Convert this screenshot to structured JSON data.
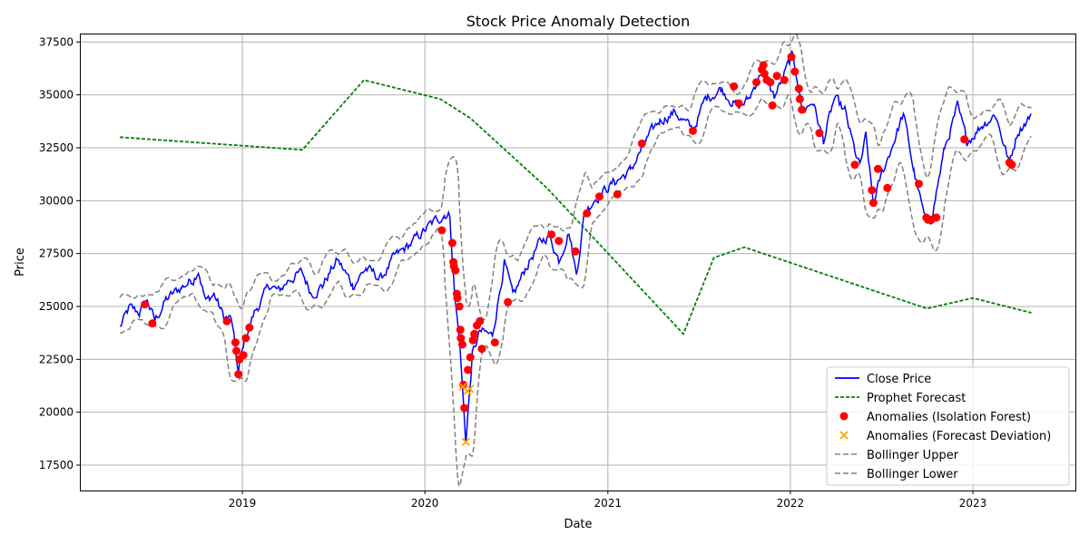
{
  "chart_data": {
    "type": "line",
    "title": "Stock Price Anomaly Detection",
    "xlabel": "Date",
    "ylabel": "Price",
    "xlim": [
      "2018-02-10",
      "2023-07-25"
    ],
    "ylim": [
      16300,
      37900
    ],
    "x_ticks": [
      "2019",
      "2020",
      "2021",
      "2022",
      "2023"
    ],
    "y_ticks": [
      17500,
      20000,
      22500,
      25000,
      27500,
      30000,
      32500,
      35000,
      37500
    ],
    "grid": true,
    "legend_position": "lower-right",
    "colors": {
      "close": "#0000ff",
      "forecast": "#008000",
      "iso": "#ff0000",
      "deviation": "#ffa500",
      "bollinger": "#808080"
    },
    "close_anchors": [
      [
        "2018-05-01",
        24000
      ],
      [
        "2018-05-20",
        24900
      ],
      [
        "2018-06-10",
        24700
      ],
      [
        "2018-06-25",
        25300
      ],
      [
        "2018-07-10",
        24300
      ],
      [
        "2018-08-01",
        25300
      ],
      [
        "2018-09-01",
        25900
      ],
      [
        "2018-09-25",
        26300
      ],
      [
        "2018-10-05",
        26800
      ],
      [
        "2018-10-20",
        25200
      ],
      [
        "2018-11-05",
        25600
      ],
      [
        "2018-11-25",
        24500
      ],
      [
        "2018-12-10",
        24400
      ],
      [
        "2018-12-24",
        21800
      ],
      [
        "2019-01-05",
        23400
      ],
      [
        "2019-01-25",
        24700
      ],
      [
        "2019-02-25",
        26000
      ],
      [
        "2019-03-15",
        25700
      ],
      [
        "2019-04-05",
        26300
      ],
      [
        "2019-04-30",
        26600
      ],
      [
        "2019-05-20",
        25600
      ],
      [
        "2019-06-10",
        26000
      ],
      [
        "2019-07-10",
        27200
      ],
      [
        "2019-08-10",
        26000
      ],
      [
        "2019-09-05",
        26800
      ],
      [
        "2019-10-05",
        26300
      ],
      [
        "2019-11-01",
        27300
      ],
      [
        "2019-12-01",
        27900
      ],
      [
        "2020-01-10",
        28800
      ],
      [
        "2020-02-10",
        29400
      ],
      [
        "2020-02-20",
        29300
      ],
      [
        "2020-03-01",
        25400
      ],
      [
        "2020-03-10",
        23500
      ],
      [
        "2020-03-23",
        18600
      ],
      [
        "2020-04-05",
        22700
      ],
      [
        "2020-04-20",
        23800
      ],
      [
        "2020-05-15",
        23600
      ],
      [
        "2020-06-08",
        27100
      ],
      [
        "2020-06-25",
        25400
      ],
      [
        "2020-07-20",
        26800
      ],
      [
        "2020-08-15",
        27900
      ],
      [
        "2020-09-05",
        28400
      ],
      [
        "2020-09-25",
        27200
      ],
      [
        "2020-10-15",
        28600
      ],
      [
        "2020-10-30",
        26500
      ],
      [
        "2020-11-15",
        29400
      ],
      [
        "2020-12-05",
        30100
      ],
      [
        "2021-01-15",
        30900
      ],
      [
        "2021-02-15",
        31400
      ],
      [
        "2021-03-15",
        32700
      ],
      [
        "2021-04-15",
        33800
      ],
      [
        "2021-05-15",
        34200
      ],
      [
        "2021-06-20",
        33300
      ],
      [
        "2021-07-15",
        34800
      ],
      [
        "2021-08-15",
        35300
      ],
      [
        "2021-09-20",
        34400
      ],
      [
        "2021-10-10",
        34800
      ],
      [
        "2021-11-05",
        36200
      ],
      [
        "2021-11-30",
        34900
      ],
      [
        "2021-12-15",
        35700
      ],
      [
        "2022-01-04",
        36800
      ],
      [
        "2022-01-15",
        35800
      ],
      [
        "2022-01-25",
        34200
      ],
      [
        "2022-02-15",
        34700
      ],
      [
        "2022-03-08",
        32800
      ],
      [
        "2022-03-30",
        34800
      ],
      [
        "2022-04-20",
        34200
      ],
      [
        "2022-05-10",
        32300
      ],
      [
        "2022-05-20",
        31600
      ],
      [
        "2022-06-01",
        33000
      ],
      [
        "2022-06-16",
        29800
      ],
      [
        "2022-07-01",
        31100
      ],
      [
        "2022-08-15",
        34100
      ],
      [
        "2022-09-05",
        31400
      ],
      [
        "2022-09-30",
        28800
      ],
      [
        "2022-10-10",
        29200
      ],
      [
        "2022-11-05",
        32400
      ],
      [
        "2022-12-01",
        34400
      ],
      [
        "2022-12-20",
        32800
      ],
      [
        "2023-01-20",
        33600
      ],
      [
        "2023-02-15",
        34100
      ],
      [
        "2023-03-15",
        31800
      ],
      [
        "2023-04-01",
        33300
      ],
      [
        "2023-04-28",
        34100
      ]
    ],
    "forecast": [
      [
        "2018-05-01",
        33000
      ],
      [
        "2019-05-01",
        32400
      ],
      [
        "2019-09-01",
        35700
      ],
      [
        "2020-02-01",
        34800
      ],
      [
        "2020-04-01",
        33900
      ],
      [
        "2020-09-01",
        30600
      ],
      [
        "2021-06-01",
        23700
      ],
      [
        "2021-08-01",
        27300
      ],
      [
        "2021-10-01",
        27800
      ],
      [
        "2022-10-01",
        24900
      ],
      [
        "2023-01-01",
        25400
      ],
      [
        "2023-04-28",
        24700
      ]
    ],
    "iso_anomalies": [
      [
        "2018-06-20",
        25100
      ],
      [
        "2018-07-05",
        24200
      ],
      [
        "2018-12-01",
        24300
      ],
      [
        "2018-12-18",
        23300
      ],
      [
        "2018-12-20",
        22900
      ],
      [
        "2018-12-24",
        21800
      ],
      [
        "2018-12-26",
        22500
      ],
      [
        "2019-01-03",
        22700
      ],
      [
        "2019-01-08",
        23500
      ],
      [
        "2019-01-15",
        24000
      ],
      [
        "2020-02-04",
        28600
      ],
      [
        "2020-02-25",
        28000
      ],
      [
        "2020-02-27",
        27100
      ],
      [
        "2020-02-28",
        26900
      ],
      [
        "2020-03-02",
        26700
      ],
      [
        "2020-03-05",
        25600
      ],
      [
        "2020-03-06",
        25400
      ],
      [
        "2020-03-10",
        25000
      ],
      [
        "2020-03-12",
        23900
      ],
      [
        "2020-03-13",
        23500
      ],
      [
        "2020-03-16",
        23200
      ],
      [
        "2020-03-18",
        21300
      ],
      [
        "2020-03-20",
        20200
      ],
      [
        "2020-03-27",
        22000
      ],
      [
        "2020-04-01",
        22600
      ],
      [
        "2020-04-06",
        23400
      ],
      [
        "2020-04-09",
        23700
      ],
      [
        "2020-04-14",
        24100
      ],
      [
        "2020-04-20",
        24300
      ],
      [
        "2020-04-24",
        23000
      ],
      [
        "2020-05-20",
        23300
      ],
      [
        "2020-06-15",
        25200
      ],
      [
        "2020-09-10",
        28400
      ],
      [
        "2020-09-25",
        28100
      ],
      [
        "2020-10-28",
        27600
      ],
      [
        "2020-11-20",
        29400
      ],
      [
        "2020-12-15",
        30200
      ],
      [
        "2021-01-20",
        30300
      ],
      [
        "2021-03-10",
        32700
      ],
      [
        "2021-06-20",
        33300
      ],
      [
        "2021-09-10",
        35400
      ],
      [
        "2021-09-20",
        34600
      ],
      [
        "2021-10-25",
        35600
      ],
      [
        "2021-11-05",
        36200
      ],
      [
        "2021-11-08",
        36400
      ],
      [
        "2021-11-10",
        36000
      ],
      [
        "2021-11-15",
        35700
      ],
      [
        "2021-11-22",
        35600
      ],
      [
        "2021-11-26",
        34500
      ],
      [
        "2021-12-05",
        35900
      ],
      [
        "2021-12-20",
        35700
      ],
      [
        "2022-01-03",
        36800
      ],
      [
        "2022-01-10",
        36100
      ],
      [
        "2022-01-18",
        35300
      ],
      [
        "2022-01-20",
        34800
      ],
      [
        "2022-01-24",
        34300
      ],
      [
        "2022-02-28",
        33200
      ],
      [
        "2022-05-10",
        31700
      ],
      [
        "2022-06-13",
        30500
      ],
      [
        "2022-06-16",
        29900
      ],
      [
        "2022-06-25",
        31500
      ],
      [
        "2022-07-14",
        30600
      ],
      [
        "2022-09-15",
        30800
      ],
      [
        "2022-09-30",
        29200
      ],
      [
        "2022-10-03",
        29100
      ],
      [
        "2022-10-10",
        29100
      ],
      [
        "2022-10-20",
        29200
      ],
      [
        "2022-12-15",
        32900
      ],
      [
        "2023-03-15",
        31800
      ],
      [
        "2023-03-20",
        31700
      ]
    ],
    "dev_anomalies": [
      [
        "2020-03-17",
        21200
      ],
      [
        "2020-03-23",
        18600
      ],
      [
        "2020-03-26",
        21000
      ],
      [
        "2020-03-31",
        21100
      ]
    ],
    "legend": [
      "Close Price",
      "Prophet Forecast",
      "Anomalies (Isolation Forest)",
      "Anomalies (Forecast Deviation)",
      "Bollinger Upper",
      "Bollinger Lower"
    ]
  }
}
